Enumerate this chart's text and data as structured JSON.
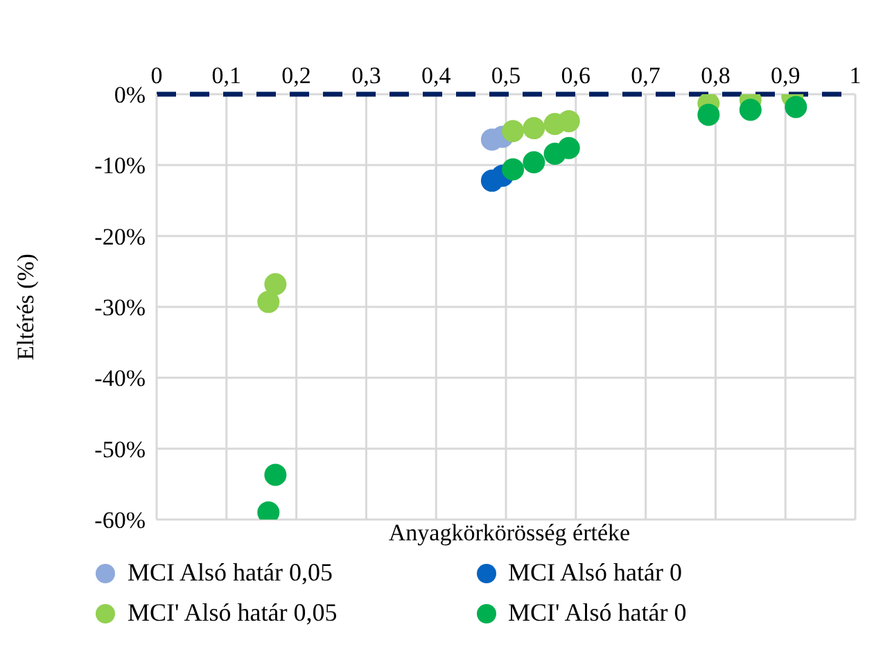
{
  "chart_data": {
    "type": "scatter",
    "xlabel": "Anyagkörkörösség értéke",
    "ylabel": "Eltérés (%)",
    "xlim": [
      0,
      1
    ],
    "xticks": [
      0,
      {
        "value": 0.1,
        "label": "0,1"
      },
      {
        "value": 0.2,
        "label": "0,2"
      },
      {
        "value": 0.3,
        "label": "0,3"
      },
      {
        "value": 0.4,
        "label": "0,4"
      },
      {
        "value": 0.5,
        "label": "0,5"
      },
      {
        "value": 0.6,
        "label": "0,6"
      },
      {
        "value": 0.7,
        "label": "0,7"
      },
      {
        "value": 0.8,
        "label": "0,8"
      },
      {
        "value": 0.9,
        "label": "0,9"
      },
      1
    ],
    "ylim": [
      -60,
      0
    ],
    "yticks": [
      {
        "value": -60,
        "label": "-60%"
      },
      {
        "value": -50,
        "label": "-50%"
      },
      {
        "value": -40,
        "label": "-40%"
      },
      {
        "value": -30,
        "label": "-30%"
      },
      {
        "value": -20,
        "label": "-20%"
      },
      {
        "value": -10,
        "label": "-10%"
      },
      {
        "value": 0,
        "label": "0%"
      }
    ],
    "grid": true,
    "legend": "bottom",
    "marker": "circle",
    "ref_lines": [
      {
        "axis": "y",
        "value": 0,
        "color": "#002060",
        "line_style": "dashed"
      }
    ],
    "series": [
      {
        "name": "MCI Alsó határ 0,05",
        "color": "#8ea9db",
        "x": [
          0.48,
          0.495
        ],
        "values": [
          -6.4,
          -6.0
        ]
      },
      {
        "name": "MCI Alsó határ 0",
        "color": "#0563c1",
        "x": [
          0.48,
          0.495
        ],
        "values": [
          -12.2,
          -11.5
        ]
      },
      {
        "name": "MCI' Alsó határ 0,05",
        "color": "#92d050",
        "x": [
          0.16,
          0.17,
          0.51,
          0.54,
          0.57,
          0.59,
          0.79,
          0.85,
          0.91
        ],
        "values": [
          -29.3,
          -26.8,
          -5.2,
          -4.8,
          -4.2,
          -3.8,
          -1.3,
          -0.8,
          -0.3
        ]
      },
      {
        "name": "MCI' Alsó határ 0",
        "color": "#00b050",
        "x": [
          0.16,
          0.17,
          0.51,
          0.54,
          0.57,
          0.59,
          0.79,
          0.85,
          0.915
        ],
        "values": [
          -59,
          -53.7,
          -10.6,
          -9.6,
          -8.4,
          -7.6,
          -2.9,
          -2.2,
          -1.8
        ]
      }
    ]
  }
}
